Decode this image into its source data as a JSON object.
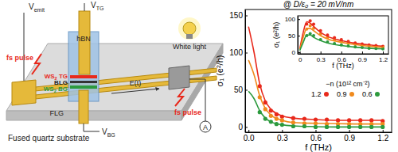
{
  "chart_data": [
    {
      "type": "line",
      "title": "@ D/ε₀ = 20 mV/nm",
      "x_label": "f (THz)",
      "y_label": "σ₁ (e²/h)",
      "xlim": [
        -0.03,
        1.28
      ],
      "ylim": [
        -7,
        158
      ],
      "xticks": [
        {
          "value": 0,
          "label": "0.0"
        },
        0.3,
        0.6,
        0.9,
        1.2
      ],
      "yticks": [
        0,
        50,
        100,
        150
      ],
      "legend": "right",
      "legend_title": "−n (10¹² cm⁻²)",
      "series": [
        {
          "name": "1.2",
          "color": "#e8291c",
          "type": "scatter",
          "marker": "circle",
          "x": [
            0.1,
            0.15,
            0.2,
            0.25,
            0.3,
            0.4,
            0.5,
            0.6,
            0.7,
            0.8,
            0.9,
            1.0,
            1.1,
            1.2
          ],
          "values": [
            55,
            33,
            22,
            17,
            14,
            12,
            11,
            10,
            10,
            9,
            9,
            9,
            9,
            8
          ]
        },
        {
          "name": "0.9",
          "color": "#f08a1d",
          "type": "scatter",
          "marker": "circle",
          "x": [
            0.1,
            0.15,
            0.2,
            0.25,
            0.3,
            0.4,
            0.5,
            0.6,
            0.7,
            0.8,
            0.9,
            1.0,
            1.1,
            1.2
          ],
          "values": [
            40,
            24,
            15,
            11,
            9,
            6,
            5,
            5,
            4,
            4,
            4,
            4,
            4,
            4
          ]
        },
        {
          "name": "0.6",
          "color": "#2c9a3e",
          "type": "scatter",
          "marker": "circle",
          "x": [
            0.1,
            0.15,
            0.2,
            0.25,
            0.3,
            0.4,
            0.5,
            0.6,
            0.7,
            0.8,
            0.9,
            1.0,
            1.1,
            1.2
          ],
          "values": [
            20,
            11,
            7,
            4,
            3,
            1,
            1,
            0,
            0,
            0,
            0,
            0,
            0,
            0
          ]
        },
        {
          "color": "#e8291c",
          "type": "line",
          "x": [
            0,
            0.05,
            0.1,
            0.15,
            0.2,
            0.3,
            0.4,
            0.6,
            0.8,
            1.0,
            1.2
          ],
          "values": [
            135,
            100,
            58,
            35,
            24,
            15,
            12,
            10,
            9,
            9,
            9
          ]
        },
        {
          "color": "#f08a1d",
          "type": "line",
          "x": [
            0,
            0.05,
            0.1,
            0.15,
            0.2,
            0.3,
            0.4,
            0.6,
            0.8,
            1.0,
            1.2
          ],
          "values": [
            90,
            70,
            42,
            25,
            16,
            9,
            6,
            5,
            4.5,
            4,
            4
          ]
        },
        {
          "color": "#2c9a3e",
          "type": "line",
          "x": [
            0,
            0.05,
            0.1,
            0.15,
            0.2,
            0.3,
            0.4,
            0.6,
            0.8,
            1.0,
            1.2
          ],
          "values": [
            48,
            38,
            22,
            12,
            7,
            3,
            1.5,
            0.5,
            0,
            0,
            0
          ]
        }
      ]
    },
    {
      "type": "line",
      "x_label": "f (THz)",
      "y_label": "σ₁ (e²/h)",
      "xlim": [
        -0.03,
        1.28
      ],
      "ylim": [
        -5,
        110
      ],
      "xticks": [
        0,
        0.3,
        0.6,
        0.9,
        1.2
      ],
      "yticks": [
        0,
        50,
        100
      ],
      "series": [
        {
          "color": "#e8291c",
          "type": "scatter",
          "marker": "circle",
          "x": [
            0.1,
            0.15,
            0.2,
            0.3,
            0.4,
            0.5,
            0.6,
            0.7,
            0.8,
            0.9,
            1.0,
            1.1,
            1.2
          ],
          "values": [
            85,
            95,
            85,
            65,
            52,
            44,
            38,
            33,
            28,
            25,
            22,
            20,
            18
          ]
        },
        {
          "color": "#f08a1d",
          "type": "scatter",
          "marker": "circle",
          "x": [
            0.1,
            0.15,
            0.2,
            0.3,
            0.4,
            0.5,
            0.6,
            0.7,
            0.8,
            0.9,
            1.0,
            1.1,
            1.2
          ],
          "values": [
            70,
            80,
            72,
            55,
            44,
            37,
            32,
            28,
            24,
            21,
            19,
            17,
            15
          ]
        },
        {
          "color": "#2c9a3e",
          "type": "scatter",
          "marker": "circle",
          "x": [
            0.1,
            0.15,
            0.2,
            0.3,
            0.4,
            0.5,
            0.6,
            0.7,
            0.8,
            0.9,
            1.0,
            1.1,
            1.2
          ],
          "values": [
            50,
            56,
            50,
            38,
            31,
            26,
            22,
            19,
            16,
            14,
            12,
            11,
            10
          ]
        },
        {
          "color": "#e8291c",
          "type": "line",
          "x": [
            0,
            0.05,
            0.1,
            0.15,
            0.2,
            0.3,
            0.4,
            0.6,
            0.8,
            1.0,
            1.2
          ],
          "values": [
            10,
            60,
            92,
            88,
            78,
            60,
            48,
            35,
            27,
            22,
            18
          ]
        },
        {
          "color": "#f08a1d",
          "type": "line",
          "x": [
            0,
            0.05,
            0.1,
            0.15,
            0.2,
            0.3,
            0.4,
            0.6,
            0.8,
            1.0,
            1.2
          ],
          "values": [
            8,
            45,
            72,
            72,
            65,
            50,
            40,
            30,
            23,
            18,
            15
          ]
        },
        {
          "color": "#2c9a3e",
          "type": "line",
          "x": [
            0,
            0.05,
            0.1,
            0.15,
            0.2,
            0.3,
            0.4,
            0.6,
            0.8,
            1.0,
            1.2
          ],
          "values": [
            5,
            30,
            52,
            52,
            45,
            35,
            28,
            20,
            15,
            12,
            10
          ]
        }
      ]
    }
  ],
  "diagram": {
    "labels": [
      {
        "text": "V",
        "sub": "emit"
      },
      {
        "text": "V",
        "sub": "TG"
      },
      {
        "text": "hBN"
      },
      {
        "text": "White light"
      },
      {
        "text": "fs pulse"
      },
      {
        "text": "fs pulse"
      },
      {
        "text": "WS",
        "sub": "2",
        "after": " TG"
      },
      {
        "text": "BLG"
      },
      {
        "text": "WS",
        "sub": "2",
        "after": " BG"
      },
      {
        "text": "FLG"
      },
      {
        "text": "V",
        "sub": "BG"
      },
      {
        "text": "E(t)"
      },
      {
        "text": "A"
      },
      {
        "text": "Fused quartz substrate"
      }
    ]
  }
}
